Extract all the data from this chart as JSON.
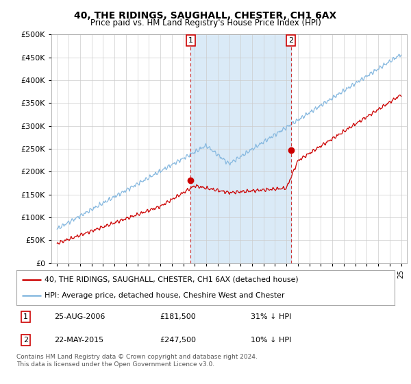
{
  "title": "40, THE RIDINGS, SAUGHALL, CHESTER, CH1 6AX",
  "subtitle": "Price paid vs. HM Land Registry's House Price Index (HPI)",
  "ylim": [
    0,
    500000
  ],
  "ytick_values": [
    0,
    50000,
    100000,
    150000,
    200000,
    250000,
    300000,
    350000,
    400000,
    450000,
    500000
  ],
  "hpi_color": "#87b9e0",
  "price_color": "#cc0000",
  "shaded_color": "#daeaf7",
  "marker1_year": 2006.65,
  "marker2_year": 2015.38,
  "marker1_price": 181500,
  "marker2_price": 247500,
  "legend_line1": "40, THE RIDINGS, SAUGHALL, CHESTER, CH1 6AX (detached house)",
  "legend_line2": "HPI: Average price, detached house, Cheshire West and Chester",
  "table_row1_num": "1",
  "table_row1_date": "25-AUG-2006",
  "table_row1_price": "£181,500",
  "table_row1_hpi": "31% ↓ HPI",
  "table_row2_num": "2",
  "table_row2_date": "22-MAY-2015",
  "table_row2_price": "£247,500",
  "table_row2_hpi": "10% ↓ HPI",
  "footnote": "Contains HM Land Registry data © Crown copyright and database right 2024.\nThis data is licensed under the Open Government Licence v3.0.",
  "background_color": "#ffffff",
  "grid_color": "#cccccc"
}
